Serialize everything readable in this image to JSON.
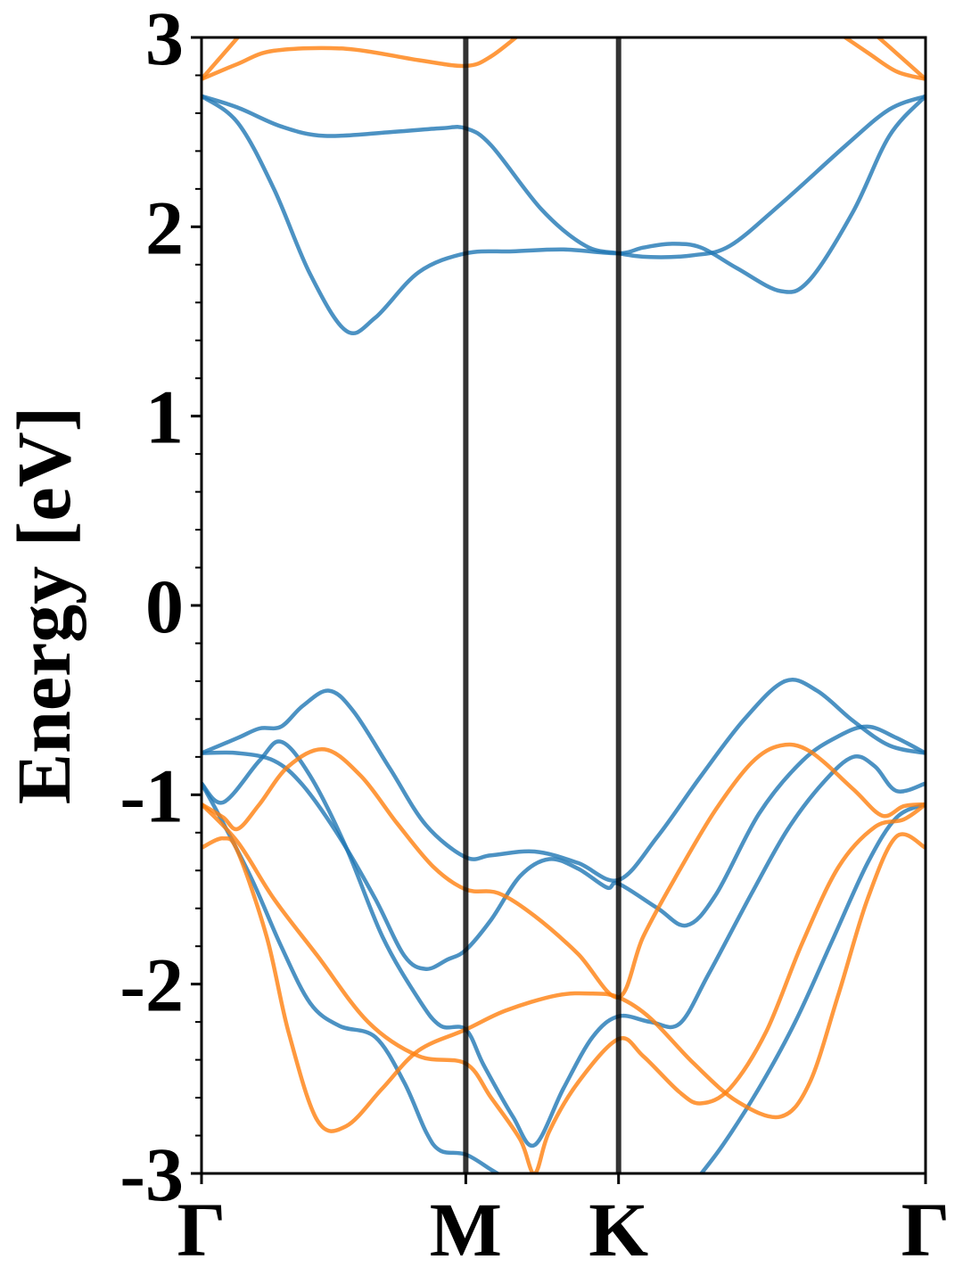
{
  "chart_data": {
    "type": "line",
    "title": "",
    "xlabel": "",
    "ylabel": "Energy [eV]",
    "ylim": [
      -3,
      3
    ],
    "y_ticks": [
      "-3",
      "-2",
      "-1",
      "0",
      "1",
      "2",
      "3"
    ],
    "y_minor_step": 0.2,
    "x_range": [
      0,
      100
    ],
    "high_symmetry_points": [
      {
        "label": "Γ",
        "x": 0
      },
      {
        "label": "M",
        "x": 36.5
      },
      {
        "label": "K",
        "x": 57.6
      },
      {
        "label": "Γ",
        "x": 100
      }
    ],
    "grid": false,
    "legend": "none",
    "series_colors": {
      "blue": "#1f77b4",
      "orange": "#ff7f0e"
    },
    "series": [
      {
        "color": "blue",
        "points": [
          [
            0,
            2.69
          ],
          [
            5,
            2.63
          ],
          [
            11,
            2.53
          ],
          [
            17,
            2.48
          ],
          [
            26,
            2.5
          ],
          [
            33,
            2.52
          ],
          [
            36.5,
            2.52
          ],
          [
            40,
            2.43
          ],
          [
            47,
            2.09
          ],
          [
            53,
            1.9
          ],
          [
            57.6,
            1.86
          ],
          [
            62,
            1.84
          ],
          [
            68,
            1.85
          ],
          [
            73,
            1.9
          ],
          [
            80,
            2.12
          ],
          [
            89,
            2.43
          ],
          [
            95,
            2.62
          ],
          [
            100,
            2.69
          ]
        ]
      },
      {
        "color": "blue",
        "points": [
          [
            0,
            2.69
          ],
          [
            5,
            2.55
          ],
          [
            10,
            2.2
          ],
          [
            15,
            1.75
          ],
          [
            20,
            1.45
          ],
          [
            24,
            1.52
          ],
          [
            30,
            1.76
          ],
          [
            36.5,
            1.86
          ],
          [
            43,
            1.87
          ],
          [
            50,
            1.88
          ],
          [
            57.6,
            1.86
          ],
          [
            61,
            1.89
          ],
          [
            65,
            1.91
          ],
          [
            69,
            1.89
          ],
          [
            74,
            1.78
          ],
          [
            80,
            1.66
          ],
          [
            84,
            1.72
          ],
          [
            90,
            2.08
          ],
          [
            95,
            2.48
          ],
          [
            100,
            2.69
          ]
        ]
      },
      {
        "color": "blue",
        "points": [
          [
            0,
            -0.78
          ],
          [
            5,
            -0.7
          ],
          [
            8,
            -0.65
          ],
          [
            11,
            -0.64
          ],
          [
            14,
            -0.53
          ],
          [
            17.6,
            -0.45
          ],
          [
            21,
            -0.56
          ],
          [
            26,
            -0.86
          ],
          [
            31,
            -1.16
          ],
          [
            36.5,
            -1.33
          ],
          [
            40,
            -1.32
          ],
          [
            46,
            -1.3
          ],
          [
            52,
            -1.36
          ],
          [
            57.6,
            -1.45
          ],
          [
            63,
            -1.22
          ],
          [
            69,
            -0.9
          ],
          [
            75,
            -0.6
          ],
          [
            80.6,
            -0.4
          ],
          [
            85,
            -0.45
          ],
          [
            90,
            -0.61
          ],
          [
            95,
            -0.74
          ],
          [
            100,
            -0.78
          ]
        ]
      },
      {
        "color": "blue",
        "points": [
          [
            0,
            -0.78
          ],
          [
            5,
            -0.78
          ],
          [
            10,
            -0.82
          ],
          [
            14,
            -0.95
          ],
          [
            19,
            -1.22
          ],
          [
            24,
            -1.55
          ],
          [
            28,
            -1.85
          ],
          [
            31,
            -1.92
          ],
          [
            34,
            -1.87
          ],
          [
            36.5,
            -1.82
          ],
          [
            40,
            -1.66
          ],
          [
            44,
            -1.43
          ],
          [
            48,
            -1.34
          ],
          [
            52,
            -1.39
          ],
          [
            56,
            -1.49
          ],
          [
            57.6,
            -1.47
          ],
          [
            63,
            -1.6
          ],
          [
            67,
            -1.69
          ],
          [
            71,
            -1.53
          ],
          [
            77,
            -1.1
          ],
          [
            83,
            -0.82
          ],
          [
            88,
            -0.69
          ],
          [
            92,
            -0.64
          ],
          [
            96,
            -0.7
          ],
          [
            100,
            -0.78
          ]
        ]
      },
      {
        "color": "blue",
        "points": [
          [
            0,
            -0.94
          ],
          [
            3,
            -1.04
          ],
          [
            8,
            -0.82
          ],
          [
            11,
            -0.72
          ],
          [
            15,
            -0.9
          ],
          [
            20,
            -1.28
          ],
          [
            25,
            -1.75
          ],
          [
            30,
            -2.08
          ],
          [
            33,
            -2.22
          ],
          [
            36.5,
            -2.24
          ],
          [
            39,
            -2.43
          ],
          [
            43,
            -2.7
          ],
          [
            46,
            -2.85
          ],
          [
            50,
            -2.55
          ],
          [
            54,
            -2.28
          ],
          [
            57.6,
            -2.17
          ],
          [
            62,
            -2.2
          ],
          [
            66,
            -2.21
          ],
          [
            70,
            -1.95
          ],
          [
            76,
            -1.52
          ],
          [
            81,
            -1.18
          ],
          [
            86,
            -0.93
          ],
          [
            90,
            -0.8
          ],
          [
            93,
            -0.85
          ],
          [
            96,
            -0.98
          ],
          [
            100,
            -0.94
          ]
        ]
      },
      {
        "color": "blue",
        "points": [
          [
            0,
            -0.94
          ],
          [
            3,
            -1.15
          ],
          [
            7,
            -1.45
          ],
          [
            11,
            -1.8
          ],
          [
            15,
            -2.1
          ],
          [
            19,
            -2.22
          ],
          [
            24,
            -2.28
          ],
          [
            28,
            -2.52
          ],
          [
            31,
            -2.78
          ],
          [
            33,
            -2.88
          ],
          [
            36.5,
            -2.9
          ],
          [
            40,
            -2.98
          ],
          [
            43,
            -3.05
          ]
        ]
      },
      {
        "color": "blue",
        "points": [
          [
            68,
            -3.05
          ],
          [
            72,
            -2.85
          ],
          [
            77,
            -2.55
          ],
          [
            82,
            -2.2
          ],
          [
            87,
            -1.78
          ],
          [
            92,
            -1.36
          ],
          [
            96,
            -1.12
          ],
          [
            100,
            -1.05
          ]
        ]
      },
      {
        "color": "orange",
        "points": [
          [
            0,
            2.78
          ],
          [
            5,
            2.86
          ],
          [
            10,
            2.93
          ],
          [
            20,
            2.94
          ],
          [
            30,
            2.88
          ],
          [
            36.5,
            2.85
          ],
          [
            40,
            2.9
          ],
          [
            45,
            3.05
          ]
        ]
      },
      {
        "color": "orange",
        "points": [
          [
            0,
            2.78
          ],
          [
            5,
            3.0
          ],
          [
            6,
            3.05
          ]
        ]
      },
      {
        "color": "orange",
        "points": [
          [
            92,
            3.05
          ],
          [
            95,
            2.95
          ],
          [
            100,
            2.78
          ]
        ]
      },
      {
        "color": "orange",
        "points": [
          [
            87,
            3.05
          ],
          [
            92,
            2.92
          ],
          [
            96,
            2.82
          ],
          [
            100,
            2.78
          ]
        ]
      },
      {
        "color": "orange",
        "points": [
          [
            0,
            -1.05
          ],
          [
            3,
            -1.12
          ],
          [
            5,
            -1.18
          ],
          [
            8,
            -1.05
          ],
          [
            12,
            -0.85
          ],
          [
            17,
            -0.76
          ],
          [
            22,
            -0.9
          ],
          [
            27,
            -1.15
          ],
          [
            32,
            -1.38
          ],
          [
            36.5,
            -1.5
          ],
          [
            41,
            -1.52
          ],
          [
            46,
            -1.64
          ],
          [
            52,
            -1.84
          ],
          [
            57.6,
            -2.07
          ],
          [
            61,
            -1.75
          ],
          [
            66,
            -1.4
          ],
          [
            71,
            -1.08
          ],
          [
            76,
            -0.83
          ],
          [
            80,
            -0.74
          ],
          [
            84,
            -0.77
          ],
          [
            90,
            -0.97
          ],
          [
            94,
            -1.11
          ],
          [
            97,
            -1.06
          ],
          [
            100,
            -1.05
          ]
        ]
      },
      {
        "color": "orange",
        "points": [
          [
            0,
            -1.05
          ],
          [
            5,
            -1.25
          ],
          [
            10,
            -1.55
          ],
          [
            16,
            -1.85
          ],
          [
            23,
            -2.2
          ],
          [
            30,
            -2.38
          ],
          [
            36.5,
            -2.42
          ],
          [
            40,
            -2.6
          ],
          [
            44,
            -2.82
          ],
          [
            46,
            -3.0
          ],
          [
            48,
            -2.78
          ],
          [
            52,
            -2.52
          ],
          [
            57.6,
            -2.29
          ],
          [
            61,
            -2.38
          ],
          [
            66,
            -2.57
          ],
          [
            69,
            -2.63
          ],
          [
            73,
            -2.55
          ],
          [
            78,
            -2.25
          ],
          [
            83,
            -1.78
          ],
          [
            88,
            -1.38
          ],
          [
            93,
            -1.17
          ],
          [
            97,
            -1.13
          ],
          [
            100,
            -1.05
          ]
        ]
      },
      {
        "color": "orange",
        "points": [
          [
            0,
            -1.28
          ],
          [
            3,
            -1.23
          ],
          [
            5,
            -1.3
          ],
          [
            9,
            -1.75
          ],
          [
            12,
            -2.25
          ],
          [
            16,
            -2.72
          ],
          [
            20,
            -2.75
          ],
          [
            25,
            -2.55
          ],
          [
            30,
            -2.35
          ],
          [
            36.5,
            -2.24
          ],
          [
            42,
            -2.14
          ],
          [
            49,
            -2.06
          ],
          [
            54,
            -2.05
          ],
          [
            57.6,
            -2.07
          ],
          [
            62,
            -2.18
          ],
          [
            68,
            -2.42
          ],
          [
            74,
            -2.62
          ],
          [
            80,
            -2.7
          ],
          [
            84,
            -2.52
          ],
          [
            88,
            -2.05
          ],
          [
            92,
            -1.55
          ],
          [
            96,
            -1.22
          ],
          [
            100,
            -1.28
          ]
        ]
      }
    ]
  }
}
